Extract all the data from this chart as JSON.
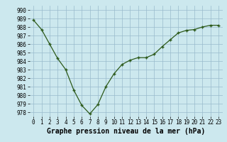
{
  "x": [
    0,
    1,
    2,
    3,
    4,
    5,
    6,
    7,
    8,
    9,
    10,
    11,
    12,
    13,
    14,
    15,
    16,
    17,
    18,
    19,
    20,
    21,
    22,
    23
  ],
  "y": [
    988.8,
    987.7,
    986.0,
    984.3,
    983.0,
    980.6,
    978.8,
    977.8,
    978.9,
    981.0,
    982.5,
    983.6,
    984.1,
    984.4,
    984.4,
    984.8,
    985.7,
    986.5,
    987.3,
    987.6,
    987.7,
    988.0,
    988.2,
    988.2
  ],
  "xlabel": "Graphe pression niveau de la mer (hPa)",
  "ylim": [
    977.5,
    990.5
  ],
  "yticks": [
    978,
    979,
    980,
    981,
    982,
    983,
    984,
    985,
    986,
    987,
    988,
    989,
    990
  ],
  "xticks": [
    0,
    1,
    2,
    3,
    4,
    5,
    6,
    7,
    8,
    9,
    10,
    11,
    12,
    13,
    14,
    15,
    16,
    17,
    18,
    19,
    20,
    21,
    22,
    23
  ],
  "line_color": "#2d5a1b",
  "marker_color": "#2d5a1b",
  "bg_color": "#cce8ee",
  "grid_color": "#99bbcc",
  "xlabel_fontsize": 7,
  "tick_fontsize": 5.5
}
